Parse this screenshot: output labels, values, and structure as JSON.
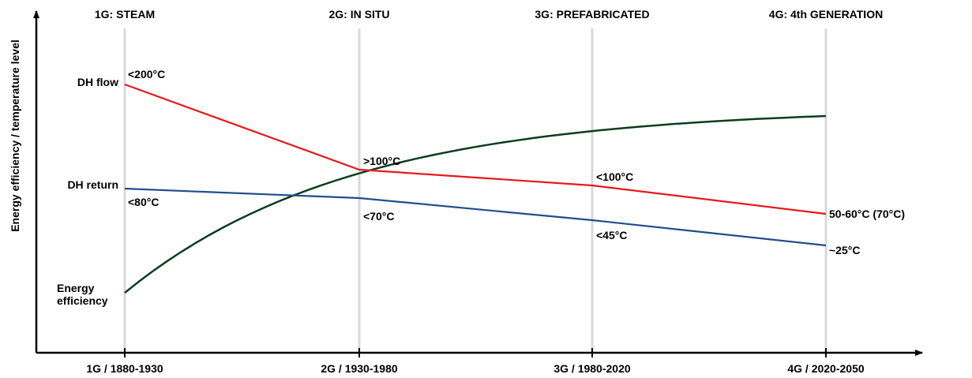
{
  "chart_data": {
    "type": "line",
    "ylabel": "Energy efficiency / temperature level",
    "x_categories": [
      "1G / 1880-1930",
      "2G / 1930-1980",
      "3G / 1980-2020",
      "4G / 2020-2050"
    ],
    "generations": [
      "1G: STEAM",
      "2G: IN SITU",
      "3G: PREFABRICATED",
      "4G: 4th GENERATION"
    ],
    "grid": "vertical lines at each generation",
    "series": [
      {
        "name": "DH flow",
        "color": "#e31a1c",
        "values": [
          0.85,
          0.58,
          0.53,
          0.44
        ],
        "point_labels": [
          "<200°C",
          ">100°C",
          "<100°C",
          "50-60°C (70°C)"
        ]
      },
      {
        "name": "DH return",
        "color": "#1f4e8c",
        "values": [
          0.52,
          0.49,
          0.42,
          0.34
        ],
        "point_labels": [
          "<80°C",
          "<70°C",
          "<45°C",
          "~25°C"
        ]
      },
      {
        "name": "Energy efficiency",
        "name_lines": [
          "Energy",
          "efficiency"
        ],
        "color": "#0b3d1e",
        "values": [
          0.19,
          0.55,
          0.67,
          0.75
        ]
      }
    ]
  }
}
